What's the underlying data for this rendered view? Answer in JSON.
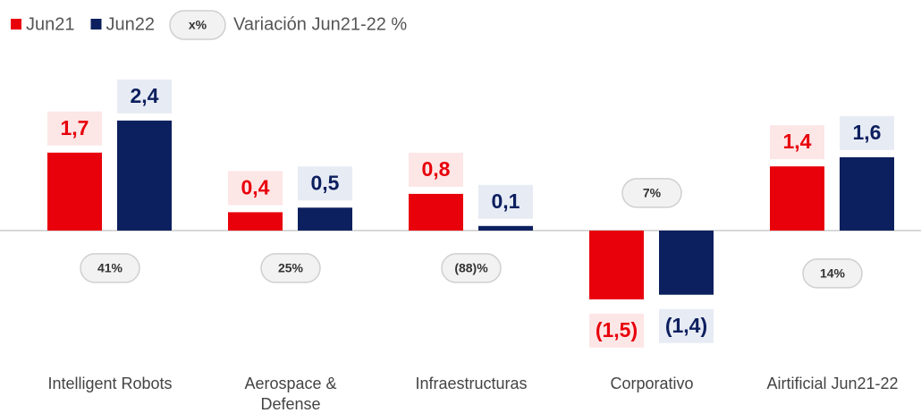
{
  "chart_data": {
    "type": "bar",
    "categories": [
      "Intelligent Robots",
      "Aerospace & Defense",
      "Infraestructuras",
      "Corporativo",
      "Airtificial Jun21-22"
    ],
    "series": [
      {
        "name": "Jun21",
        "color": "#e8000b",
        "values": [
          1.7,
          0.4,
          0.8,
          -1.5,
          1.4
        ],
        "value_labels": [
          "1,7",
          "0,4",
          "0,8",
          "(1,5)",
          "1,4"
        ]
      },
      {
        "name": "Jun22",
        "color": "#0c1f5e",
        "values": [
          2.4,
          0.5,
          0.1,
          -1.4,
          1.6
        ],
        "value_labels": [
          "2,4",
          "0,5",
          "0,1",
          "(1,4)",
          "1,6"
        ]
      }
    ],
    "variation": {
      "symbol": "x%",
      "label": "Variación Jun21-22 %",
      "values": [
        41,
        25,
        -88,
        7,
        14
      ],
      "value_labels": [
        "41%",
        "25%",
        "(88)%",
        "7%",
        "14%"
      ]
    },
    "ylim": [
      -2.4,
      3.45
    ]
  }
}
